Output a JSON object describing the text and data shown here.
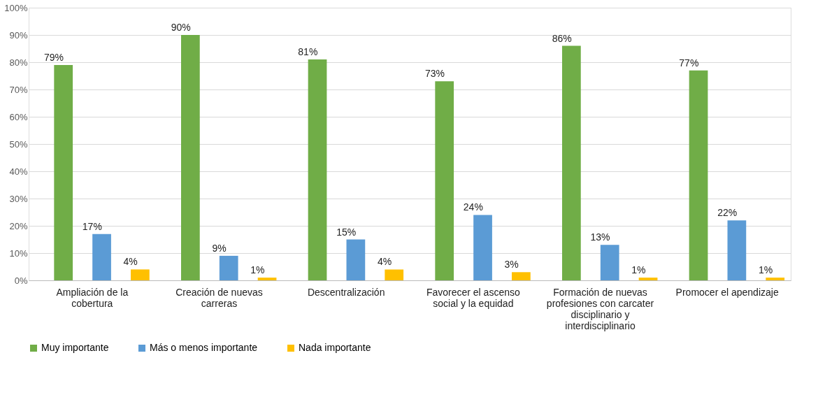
{
  "chart_data": {
    "type": "bar",
    "categories": [
      "Ampliación de la cobertura",
      "Creación de nuevas carreras",
      "Descentralización",
      "Favorecer el ascenso social y la equidad",
      "Formación de nuevas profesiones con carcater disciplinario y interdisciplinario",
      "Promocer el apendizaje"
    ],
    "series": [
      {
        "name": "Muy importante",
        "color": "#70ad47",
        "values": [
          79,
          90,
          81,
          73,
          86,
          77
        ],
        "value_labels": [
          "79%",
          "90%",
          "81%",
          "73%",
          "86%",
          "77%"
        ]
      },
      {
        "name": "Más o menos importante",
        "color": "#5b9bd5",
        "values": [
          17,
          9,
          15,
          24,
          13,
          22
        ],
        "value_labels": [
          "17%",
          "9%",
          "15%",
          "24%",
          "13%",
          "22%"
        ]
      },
      {
        "name": "Nada importante",
        "color": "#ffc000",
        "values": [
          4,
          1,
          4,
          3,
          1,
          1
        ],
        "value_labels": [
          "4%",
          "1%",
          "4%",
          "3%",
          "1%",
          "1%"
        ]
      }
    ],
    "ylim": [
      0,
      100
    ],
    "yticks": [
      {
        "value": 0,
        "label": "0%"
      },
      {
        "value": 10,
        "label": "10%"
      },
      {
        "value": 20,
        "label": "20%"
      },
      {
        "value": 30,
        "label": "30%"
      },
      {
        "value": 40,
        "label": "40%"
      },
      {
        "value": 50,
        "label": "50%"
      },
      {
        "value": 60,
        "label": "60%"
      },
      {
        "value": 70,
        "label": "70%"
      },
      {
        "value": 80,
        "label": "80%"
      },
      {
        "value": 90,
        "label": "90%"
      },
      {
        "value": 100,
        "label": "100%"
      }
    ],
    "grid": "y",
    "legend": "bottom"
  }
}
